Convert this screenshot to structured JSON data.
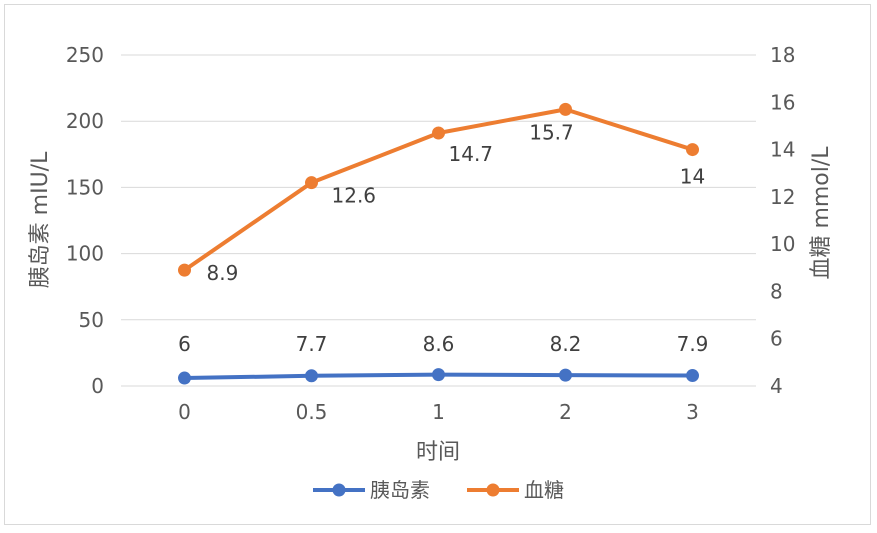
{
  "chart_data": {
    "type": "line",
    "categories": [
      "0",
      "0.5",
      "1",
      "2",
      "3"
    ],
    "xlabel": "时间",
    "ylabel_left": "胰岛素 mIU/L",
    "ylabel_right": "血糖 mmol/L",
    "ylim_left": [
      0,
      250
    ],
    "ylim_right": [
      4,
      18
    ],
    "yticks_left": [
      "0",
      "50",
      "100",
      "150",
      "200",
      "250"
    ],
    "yticks_right": [
      "4",
      "6",
      "8",
      "10",
      "12",
      "14",
      "16",
      "18"
    ],
    "grid": true,
    "legend_position": "bottom",
    "series": [
      {
        "name": "胰岛素",
        "axis": "left",
        "color": "#4472C4",
        "values": [
          6,
          7.7,
          8.6,
          8.2,
          7.9
        ],
        "labels": [
          "6",
          "7.7",
          "8.6",
          "8.2",
          "7.9"
        ]
      },
      {
        "name": "血糖",
        "axis": "right",
        "color": "#ED7D31",
        "values": [
          8.9,
          12.6,
          14.7,
          15.7,
          14
        ],
        "labels": [
          "8.9",
          "12.6",
          "14.7",
          "15.7",
          "14"
        ]
      }
    ]
  }
}
